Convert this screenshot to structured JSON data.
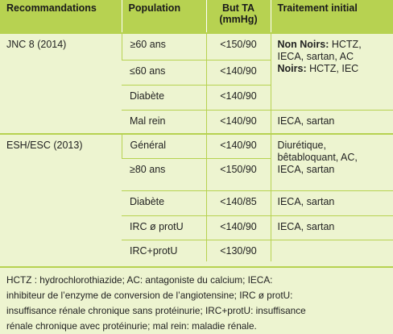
{
  "table": {
    "headers": {
      "col1": "Recommandations",
      "col2": "Population",
      "col3_line1": "But TA",
      "col3_line2": "(mmHg)",
      "col4": "Traitement initial"
    },
    "jnc": {
      "guideline": "JNC 8 (2014)",
      "rows": [
        {
          "population": "≥60 ans",
          "goal": "<150/90"
        },
        {
          "population": "≤60 ans",
          "goal": "<140/90"
        },
        {
          "population": "Diabète",
          "goal": "<140/90"
        },
        {
          "population": "Mal rein",
          "goal": "<140/90"
        }
      ],
      "treatment_nonnoirs_label": "Non Noirs:",
      "treatment_nonnoirs_text_1": " HCTZ,",
      "treatment_nonnoirs_text_2": "IECA, sartan, AC",
      "treatment_noirs_label": "Noirs:",
      "treatment_noirs_text": " HCTZ, IEC",
      "treatment_malrein": "IECA, sartan"
    },
    "esh": {
      "guideline": "ESH/ESC (2013)",
      "rows": [
        {
          "population": "Général",
          "goal": "<140/90",
          "treatment_1": "Diurétique,",
          "treatment_2": "bêtabloquant, AC,",
          "treatment_3": "IECA, sartan"
        },
        {
          "population": "≥80 ans",
          "goal": "<150/90"
        },
        {
          "population": "Diabète",
          "goal": "<140/85",
          "treatment": "IECA, sartan"
        },
        {
          "population": "IRC ø protU",
          "goal": "<140/90",
          "treatment": "IECA, sartan"
        },
        {
          "population": "IRC+protU",
          "goal": "<130/90",
          "treatment": ""
        }
      ]
    }
  },
  "footnote": {
    "line1": "HCTZ : hydrochlorothiazide; AC: antagoniste du calcium; IECA:",
    "line2": "inhibiteur de l’enzyme de conversion de l’angiotensine; IRC ø protU:",
    "line3": "insuffisance rénale chronique sans protéinurie; IRC+protU: insuffisance",
    "line4": "rénale chronique avec protéinurie; mal rein: maladie rénale."
  },
  "colors": {
    "header_bg": "#b7d251",
    "body_bg": "#edf4d0",
    "rule": "#b7d251"
  }
}
